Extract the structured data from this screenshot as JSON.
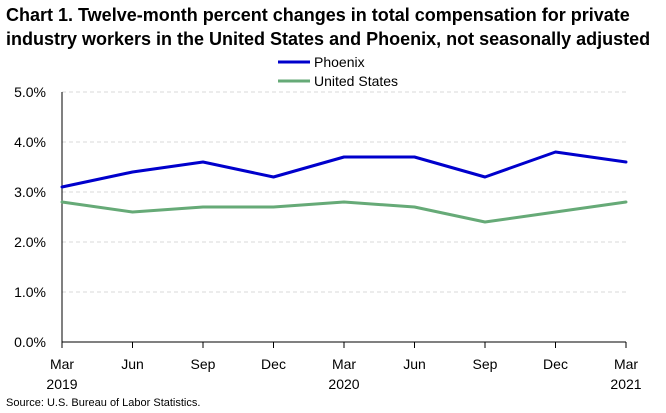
{
  "chart_data": {
    "type": "line",
    "title_lines": [
      "Chart 1. Twelve-month percent changes in total compensation for private",
      "industry workers in the United States and Phoenix, not seasonally adjusted"
    ],
    "categories": [
      "Mar",
      "Jun",
      "Sep",
      "Dec",
      "Mar",
      "Jun",
      "Sep",
      "Dec",
      "Mar"
    ],
    "category_years": [
      "2019",
      "",
      "",
      "",
      "2020",
      "",
      "",
      "",
      "2021"
    ],
    "series": [
      {
        "name": "Phoenix",
        "color": "#0000cc",
        "values": [
          3.1,
          3.4,
          3.6,
          3.3,
          3.7,
          3.7,
          3.3,
          3.8,
          3.6
        ]
      },
      {
        "name": "United States",
        "color": "#66aa77",
        "values": [
          2.8,
          2.6,
          2.7,
          2.7,
          2.8,
          2.7,
          2.4,
          2.6,
          2.8
        ]
      }
    ],
    "yticks": [
      "0.0%",
      "1.0%",
      "2.0%",
      "3.0%",
      "4.0%",
      "5.0%"
    ],
    "ylim": [
      0,
      5
    ],
    "grid": true,
    "legend": "top-center",
    "source": "Source: U.S. Bureau of Labor Statistics."
  }
}
